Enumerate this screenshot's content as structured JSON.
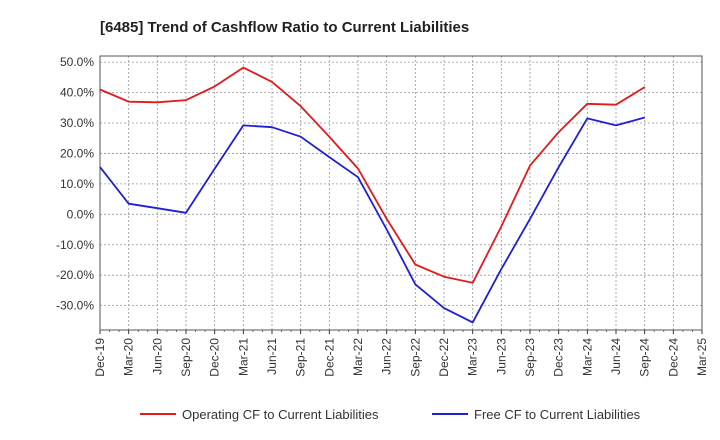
{
  "chart_data": {
    "type": "line",
    "title": "[6485]  Trend of Cashflow Ratio to Current Liabilities",
    "xlabel": "",
    "ylabel": "",
    "categories": [
      "Dec-19",
      "Mar-20",
      "Jun-20",
      "Sep-20",
      "Dec-20",
      "Mar-21",
      "Jun-21",
      "Sep-21",
      "Dec-21",
      "Mar-22",
      "Jun-22",
      "Sep-22",
      "Dec-22",
      "Mar-23",
      "Jun-23",
      "Sep-23",
      "Dec-23",
      "Mar-24",
      "Jun-24",
      "Sep-24",
      "Dec-24",
      "Mar-25"
    ],
    "y_ticks": [
      "50.0%",
      "40.0%",
      "30.0%",
      "20.0%",
      "10.0%",
      "0.0%",
      "-10.0%",
      "-20.0%",
      "-30.0%"
    ],
    "y_tick_values": [
      50,
      40,
      30,
      20,
      10,
      0,
      -10,
      -20,
      -30
    ],
    "ylim": [
      -38,
      52
    ],
    "grid": true,
    "legend_position": "bottom",
    "series": [
      {
        "name": "Operating CF to Current Liabilities",
        "color": "#e31a1c",
        "values": [
          41.0,
          37.0,
          36.8,
          37.5,
          42.0,
          48.2,
          43.5,
          35.5,
          25.5,
          15.0,
          -1.5,
          -16.5,
          -20.5,
          -22.5,
          -4.0,
          16.0,
          27.0,
          36.3,
          36.0,
          41.8,
          null,
          null
        ]
      },
      {
        "name": "Free CF to Current Liabilities",
        "color": "#1f1fd6",
        "values": [
          15.5,
          3.5,
          2.0,
          0.5,
          15.0,
          29.2,
          28.6,
          25.5,
          18.8,
          12.2,
          -5.0,
          -23.0,
          -30.8,
          -35.5,
          -18.0,
          -1.5,
          15.5,
          31.5,
          29.2,
          31.8,
          null,
          null
        ]
      }
    ]
  }
}
